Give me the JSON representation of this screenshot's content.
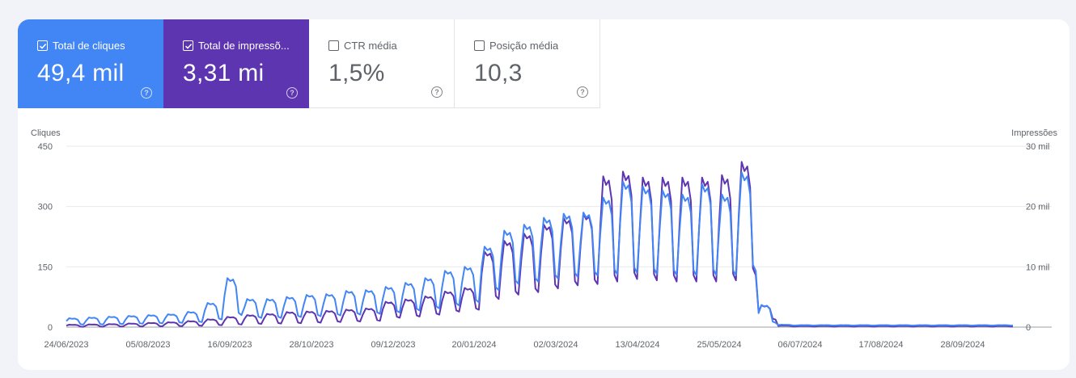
{
  "metrics": [
    {
      "id": "clicks",
      "label": "Total de cliques",
      "value": "49,4 mil",
      "checked": true,
      "color": "#4285f4"
    },
    {
      "id": "impressions",
      "label": "Total de impressõ...",
      "value": "3,31 mi",
      "checked": true,
      "color": "#5e35b1"
    },
    {
      "id": "ctr",
      "label": "CTR média",
      "value": "1,5%",
      "checked": false
    },
    {
      "id": "position",
      "label": "Posição média",
      "value": "10,3",
      "checked": false
    }
  ],
  "chart_data": {
    "type": "line",
    "left_axis_title": "Cliques",
    "right_axis_title": "Impressões",
    "left_ticks": [
      "450",
      "300",
      "150",
      "0"
    ],
    "right_ticks": [
      "30 mil",
      "20 mil",
      "10 mil",
      "0"
    ],
    "y_left_range": [
      0,
      450
    ],
    "y_right_range": [
      0,
      30000
    ],
    "x_labels": [
      "24/06/2023",
      "05/08/2023",
      "16/09/2023",
      "28/10/2023",
      "09/12/2023",
      "20/01/2024",
      "02/03/2024",
      "13/04/2024",
      "25/05/2024",
      "06/07/2024",
      "17/08/2024",
      "28/09/2024"
    ],
    "grid": true,
    "series": [
      {
        "name": "Cliques",
        "axis": "left",
        "color": "#4285f4",
        "weekly_peak": [
          22,
          24,
          26,
          28,
          30,
          32,
          38,
          60,
          122,
          70,
          70,
          75,
          80,
          82,
          90,
          92,
          100,
          110,
          122,
          140,
          150,
          200,
          240,
          255,
          272,
          282,
          285,
          322,
          362,
          350,
          340,
          330,
          355,
          330,
          385,
          55,
          6,
          5,
          5,
          5,
          5,
          5,
          5,
          5,
          5,
          5,
          5,
          5
        ],
        "weekly_trough": [
          6,
          6,
          7,
          8,
          9,
          10,
          12,
          18,
          28,
          22,
          22,
          24,
          26,
          28,
          30,
          32,
          35,
          40,
          45,
          52,
          60,
          90,
          105,
          110,
          118,
          122,
          125,
          128,
          130,
          128,
          125,
          125,
          125,
          125,
          135,
          10,
          4,
          4,
          4,
          4,
          4,
          4,
          4,
          4,
          4,
          4,
          4,
          4
        ]
      },
      {
        "name": "Impressões",
        "axis": "right",
        "color": "#5e35b1",
        "weekly_peak": [
          400,
          450,
          500,
          600,
          700,
          800,
          1000,
          1300,
          1700,
          2000,
          2200,
          2500,
          2600,
          2700,
          2900,
          3100,
          4200,
          4600,
          5100,
          5900,
          6500,
          12500,
          14300,
          15500,
          17000,
          18100,
          18800,
          25000,
          25800,
          24800,
          24800,
          24800,
          24800,
          25200,
          27400,
          3600,
          250,
          200,
          200,
          200,
          200,
          200,
          200,
          200,
          200,
          200,
          200,
          200
        ],
        "weekly_trough": [
          50,
          60,
          80,
          100,
          120,
          150,
          200,
          300,
          400,
          500,
          550,
          600,
          700,
          800,
          900,
          1000,
          1500,
          1700,
          2000,
          2500,
          2800,
          4500,
          5200,
          5600,
          6200,
          6700,
          6900,
          7200,
          7600,
          7400,
          7200,
          7200,
          7200,
          7400,
          8200,
          1200,
          100,
          80,
          80,
          80,
          80,
          80,
          80,
          80,
          80,
          80,
          80,
          80
        ]
      }
    ]
  }
}
